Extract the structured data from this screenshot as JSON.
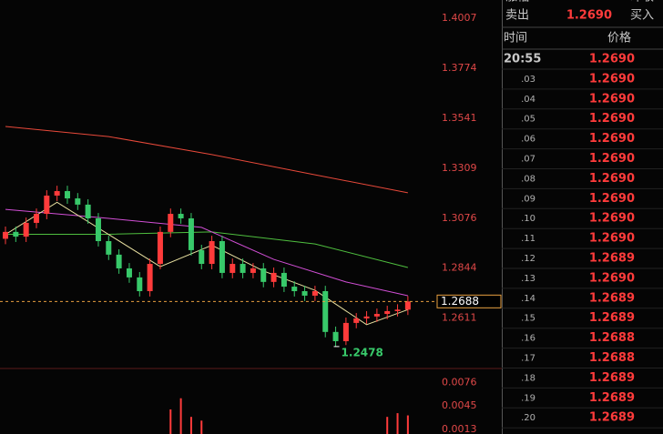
{
  "chart_data": [
    {
      "type": "candlestick",
      "open": [
        1.298,
        1.3012,
        1.299,
        1.3054,
        1.3096,
        1.3181,
        1.3202,
        1.3168,
        1.3139,
        1.3075,
        1.2969,
        1.2906,
        1.2842,
        1.28,
        1.2736,
        1.2863,
        1.3012,
        1.3096,
        1.3075,
        1.2927,
        1.2863,
        1.2969,
        1.2821,
        1.2863,
        1.2821,
        1.2842,
        1.2779,
        1.2821,
        1.2757,
        1.2736,
        1.2715,
        1.2736,
        1.2546,
        1.2503,
        1.2588,
        1.2609,
        1.2618,
        1.263,
        1.2643,
        1.265
      ],
      "high": [
        1.3037,
        1.3037,
        1.3079,
        1.3121,
        1.3206,
        1.3227,
        1.3227,
        1.3193,
        1.3164,
        1.31,
        1.2994,
        1.2931,
        1.2867,
        1.2825,
        1.2888,
        1.3037,
        1.3121,
        1.3121,
        1.31,
        1.2952,
        1.2994,
        1.2994,
        1.2888,
        1.2888,
        1.2867,
        1.2867,
        1.2846,
        1.2846,
        1.2782,
        1.2761,
        1.2761,
        1.2761,
        1.2571,
        1.2613,
        1.2634,
        1.2643,
        1.2655,
        1.2668,
        1.2675,
        1.2713
      ],
      "low": [
        1.2955,
        1.2965,
        1.2965,
        1.3029,
        1.3071,
        1.3156,
        1.3143,
        1.3114,
        1.305,
        1.2944,
        1.2881,
        1.2817,
        1.2775,
        1.2711,
        1.2711,
        1.2838,
        1.2987,
        1.305,
        1.2902,
        1.2838,
        1.2838,
        1.2796,
        1.2796,
        1.2796,
        1.2796,
        1.2754,
        1.2754,
        1.2732,
        1.2711,
        1.269,
        1.269,
        1.2521,
        1.2478,
        1.2485,
        1.2563,
        1.2584,
        1.2593,
        1.2605,
        1.2618,
        1.2625
      ],
      "close": [
        1.3012,
        1.299,
        1.3054,
        1.3096,
        1.3181,
        1.3202,
        1.3168,
        1.3139,
        1.3075,
        1.2969,
        1.2906,
        1.2842,
        1.28,
        1.2736,
        1.2863,
        1.3012,
        1.3096,
        1.3075,
        1.2927,
        1.2863,
        1.2969,
        1.2821,
        1.2863,
        1.2821,
        1.2842,
        1.2779,
        1.2821,
        1.2757,
        1.2736,
        1.2715,
        1.2736,
        1.2546,
        1.2503,
        1.2588,
        1.2609,
        1.2618,
        1.263,
        1.2643,
        1.265,
        1.2688
      ],
      "up_color": "#ff3b3b",
      "down_color": "#38c96a",
      "lines": [
        {
          "color": "#e8493a",
          "x": [
            0,
            10,
            20,
            30,
            39
          ],
          "values": [
            1.3503,
            1.3456,
            1.3372,
            1.3278,
            1.3194
          ]
        },
        {
          "color": "#4fbf3f",
          "x": [
            0,
            10,
            20,
            30,
            39
          ],
          "values": [
            1.3001,
            1.3001,
            1.3012,
            1.2956,
            1.2846
          ]
        },
        {
          "color": "#d24fd6",
          "x": [
            0,
            10,
            19,
            26,
            33,
            39
          ],
          "values": [
            1.3117,
            1.3075,
            1.3033,
            1.2884,
            1.2779,
            1.2715
          ]
        },
        {
          "color": "#e8e0a0",
          "x": [
            0,
            5,
            10,
            15,
            20,
            25,
            30,
            35,
            39
          ],
          "values": [
            1.3,
            1.315,
            1.3,
            1.285,
            1.295,
            1.283,
            1.274,
            1.258,
            1.265
          ]
        }
      ],
      "ylim": [
        1.2397,
        1.4092
      ],
      "yticks": [
        1.4007,
        1.3774,
        1.3541,
        1.3309,
        1.3076,
        1.2844,
        1.2611
      ],
      "last_price": 1.2688,
      "low_label": 1.2478,
      "low_index": 32
    },
    {
      "type": "bar",
      "x": [
        16,
        17,
        18,
        19,
        37,
        38,
        39
      ],
      "values": [
        0.004,
        0.0055,
        0.003,
        0.0025,
        0.003,
        0.0035,
        0.0032
      ],
      "color": "#ff3b3b",
      "ylim": [
        0.0007,
        0.0095
      ],
      "yticks": [
        0.0076,
        0.0045,
        0.0013
      ]
    }
  ],
  "quote_panel": {
    "top_row": [
      "涨幅",
      "昨收"
    ],
    "sell_row": [
      "卖出",
      "1.2690",
      "买入"
    ],
    "header": [
      "时间",
      "价格"
    ],
    "rows": [
      [
        "20:55",
        "1.2690"
      ],
      [
        ".03",
        "1.2690"
      ],
      [
        ".04",
        "1.2690"
      ],
      [
        ".05",
        "1.2690"
      ],
      [
        ".06",
        "1.2690"
      ],
      [
        ".07",
        "1.2690"
      ],
      [
        ".08",
        "1.2690"
      ],
      [
        ".09",
        "1.2690"
      ],
      [
        ".10",
        "1.2690"
      ],
      [
        ".11",
        "1.2690"
      ],
      [
        ".12",
        "1.2689"
      ],
      [
        ".13",
        "1.2690"
      ],
      [
        ".14",
        "1.2689"
      ],
      [
        ".15",
        "1.2689"
      ],
      [
        ".16",
        "1.2688"
      ],
      [
        ".17",
        "1.2688"
      ],
      [
        ".18",
        "1.2689"
      ],
      [
        ".19",
        "1.2689"
      ],
      [
        ".20",
        "1.2689"
      ]
    ]
  }
}
